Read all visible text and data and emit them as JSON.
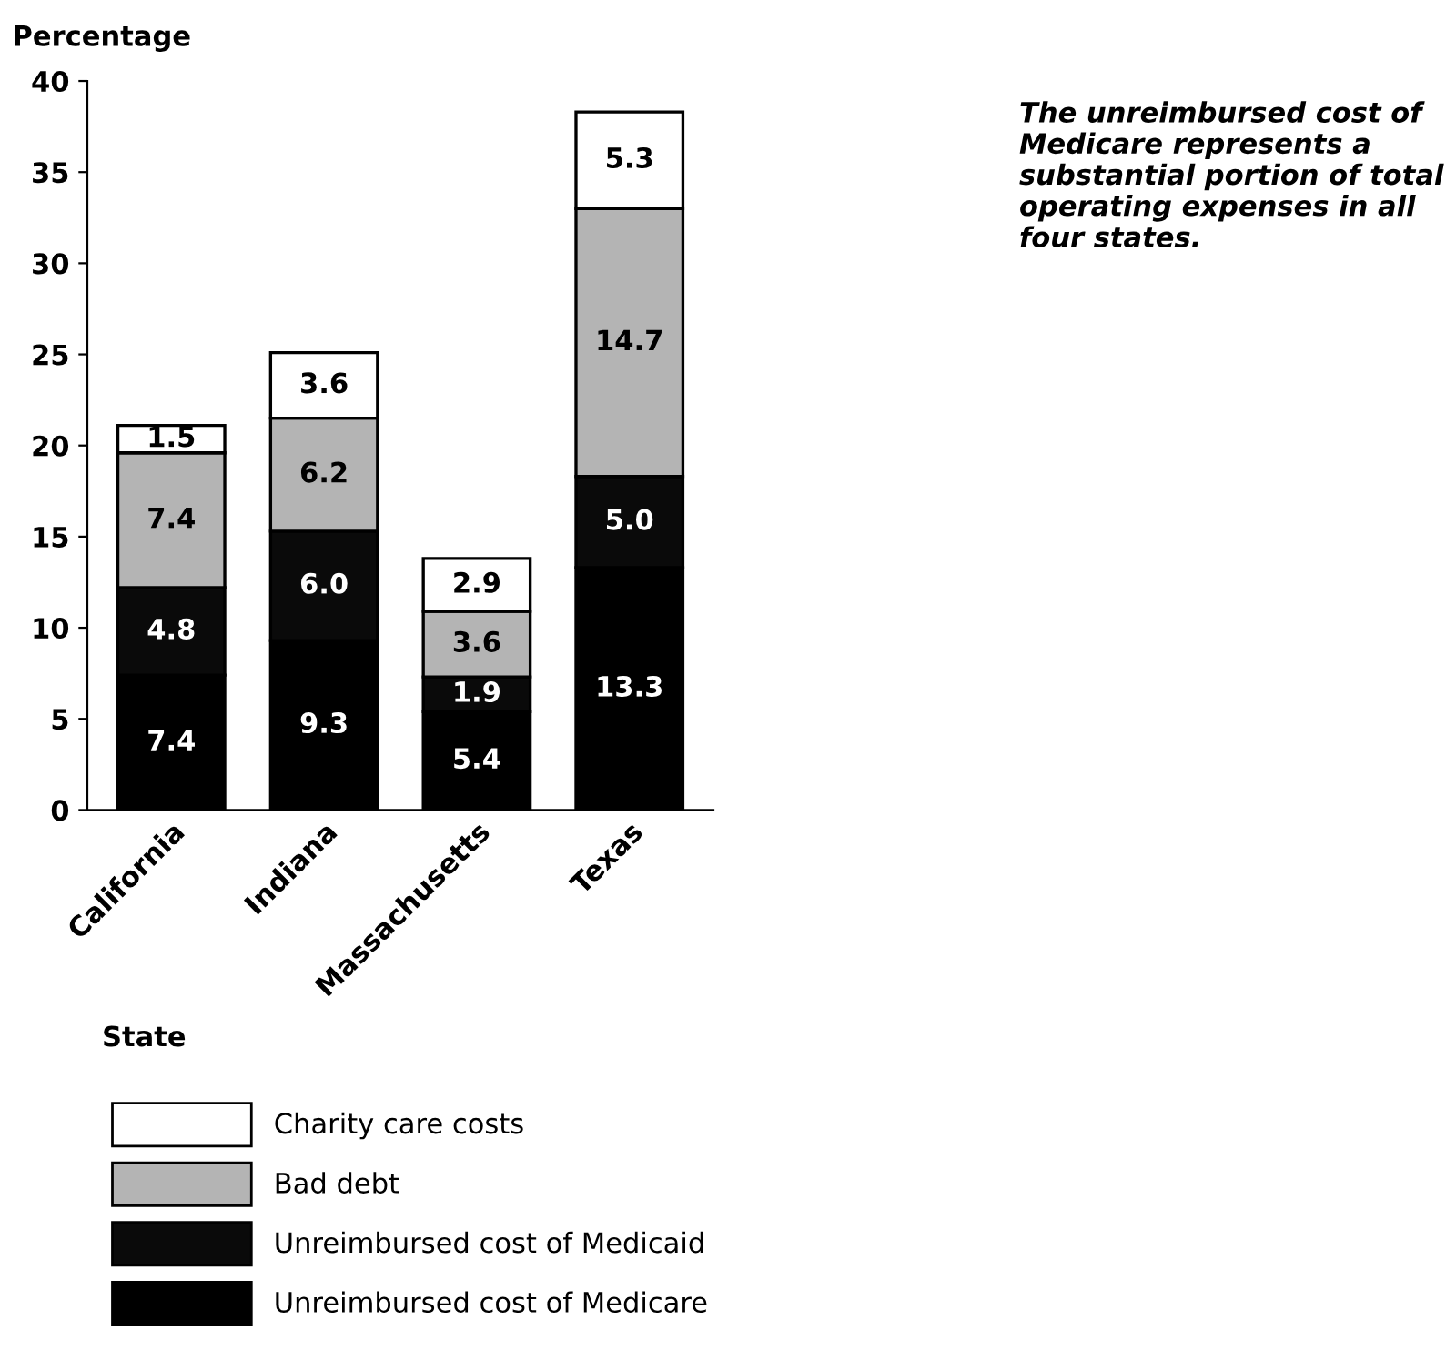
{
  "chart_data": {
    "type": "bar",
    "stacked": true,
    "ylabel": "Percentage",
    "xlabel": "State",
    "categories": [
      "California",
      "Indiana",
      "Massachusetts",
      "Texas"
    ],
    "series": [
      {
        "name": "Unreimbursed cost of Medicare",
        "color": "#000000",
        "values": [
          7.4,
          9.3,
          5.4,
          13.3
        ],
        "value_labels": [
          "7.4",
          "9.3",
          "5.4",
          "13.3"
        ]
      },
      {
        "name": "Unreimbursed cost of Medicaid",
        "color": "#0a0a0a",
        "values": [
          4.8,
          6.0,
          1.9,
          5.0
        ],
        "value_labels": [
          "4.8",
          "6.0",
          "1.9",
          "5.0"
        ]
      },
      {
        "name": "Bad debt",
        "color": "#b4b4b4",
        "values": [
          7.4,
          6.2,
          3.6,
          14.7
        ],
        "value_labels": [
          "7.4",
          "6.2",
          "3.6",
          "14.7"
        ]
      },
      {
        "name": "Charity care costs",
        "color": "#ffffff",
        "values": [
          1.5,
          3.6,
          2.9,
          5.3
        ],
        "value_labels": [
          "1.5",
          "3.6",
          "2.9",
          "5.3"
        ]
      }
    ],
    "ylim": [
      0,
      40
    ],
    "yticks": [
      0,
      5,
      10,
      15,
      20,
      25,
      30,
      35,
      40
    ],
    "grid": false,
    "legend": "bottom",
    "annotations": [
      "The unreimbursed cost of Medicare represents a substantial portion of total operating expenses in all four states."
    ]
  }
}
